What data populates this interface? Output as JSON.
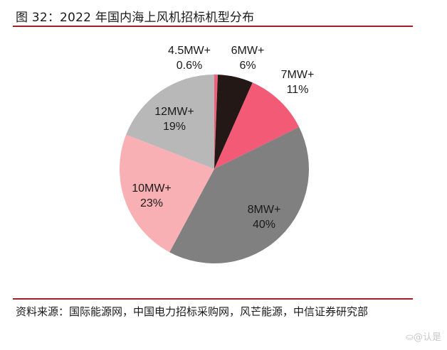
{
  "header": {
    "title": "图 32：2022 年国内海上风机招标机型分布"
  },
  "footer": {
    "source": "资料来源：国际能源网，中国电力招标采购网，风芒能源，中信证券研究部",
    "watermark": "⛀@认是"
  },
  "chart_data": {
    "type": "pie",
    "title": "2022 年国内海上风机招标机型分布",
    "start_angle": "12 o'clock",
    "direction": "clockwise",
    "legend": "none (labels on slices)",
    "slices": [
      {
        "name": "4.5MW+",
        "value": 0.6,
        "label": "0.6%",
        "color": "#f0607a"
      },
      {
        "name": "6MW+",
        "value": 6,
        "label": "6%",
        "color": "#231815"
      },
      {
        "name": "7MW+",
        "value": 11,
        "label": "11%",
        "color": "#f25a75"
      },
      {
        "name": "8MW+",
        "value": 40,
        "label": "40%",
        "color": "#808080"
      },
      {
        "name": "10MW+",
        "value": 23,
        "label": "23%",
        "color": "#f9b0b4"
      },
      {
        "name": "12MW+",
        "value": 19,
        "label": "19%",
        "color": "#b8b8b8"
      }
    ]
  }
}
